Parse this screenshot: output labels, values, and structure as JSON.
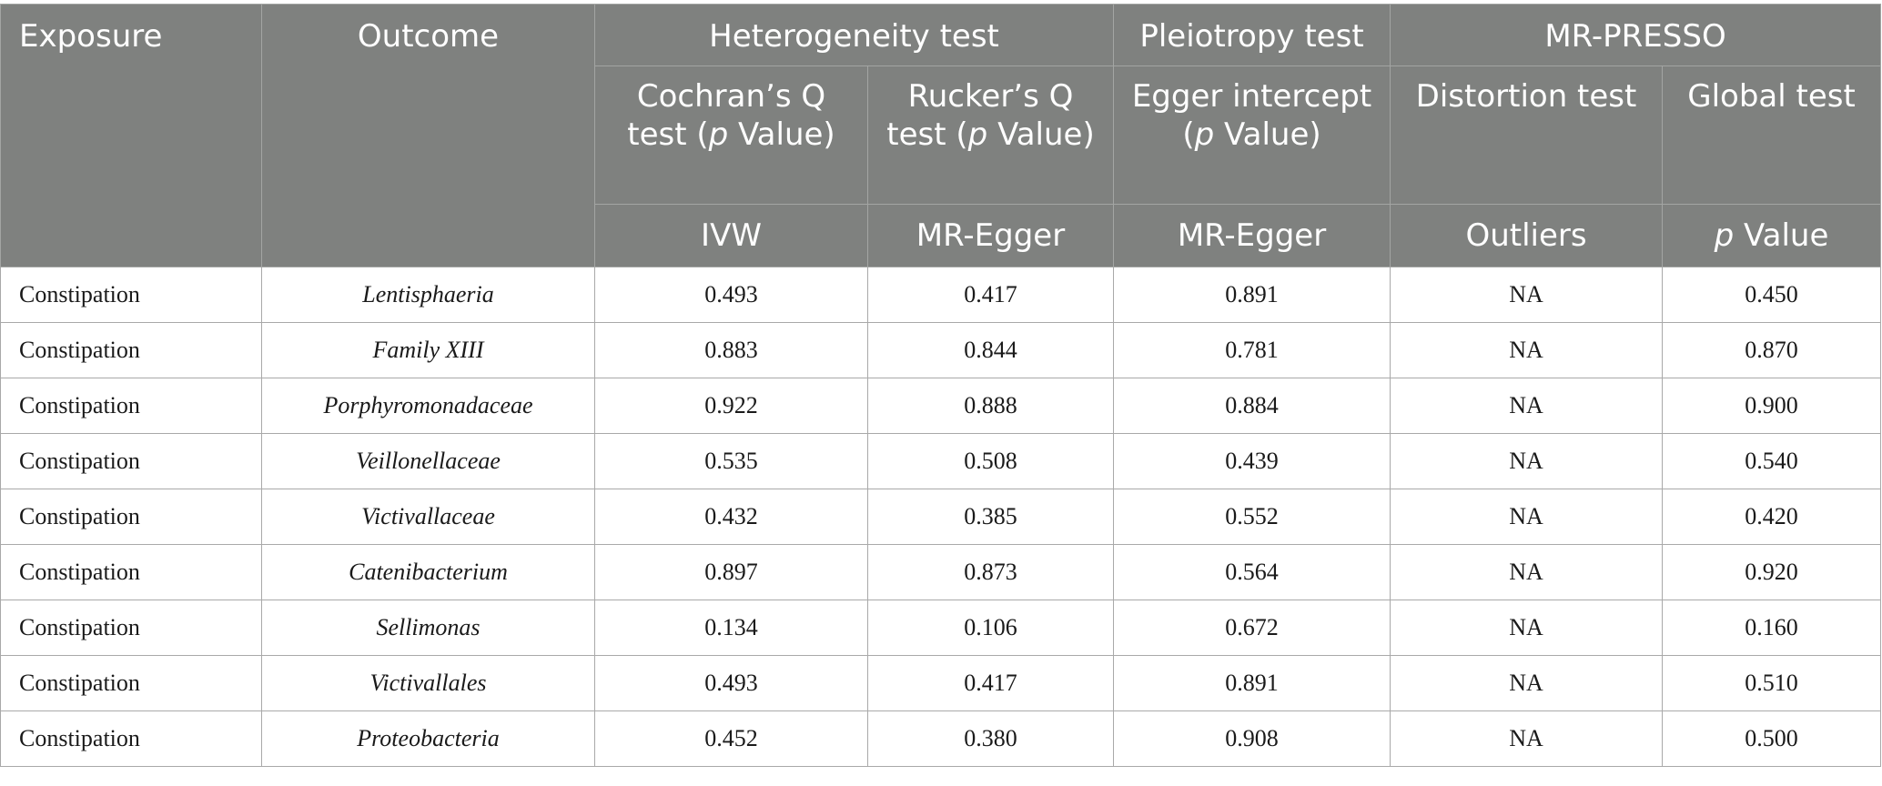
{
  "header": {
    "exposure": "Exposure",
    "outcome": "Outcome",
    "heterogeneity_test": "Heterogeneity test",
    "pleiotropy_test": "Pleiotropy test",
    "mr_presso": "MR-PRESSO",
    "cochran_pre": "Cochran’s Q test (",
    "cochran_p": "p",
    "cochran_post": " Value)",
    "rucker_pre": "Rucker’s Q test (",
    "rucker_p": "p",
    "rucker_post": " Value)",
    "egger_pre": "Egger intercept (",
    "egger_p": "p",
    "egger_post": " Value)",
    "distortion_test": "Distortion test",
    "global_test": "Global test",
    "ivw": "IVW",
    "mr_egger_1": "MR-Egger",
    "mr_egger_2": "MR-Egger",
    "outliers": "Outliers",
    "pvalue_p": "p",
    "pvalue_post": " Value"
  },
  "rows": [
    {
      "exposure": "Constipation",
      "outcome": "Lentisphaeria",
      "ivw": "0.493",
      "rucker": "0.417",
      "egger": "0.891",
      "outliers": "NA",
      "global": "0.450"
    },
    {
      "exposure": "Constipation",
      "outcome": "Family XIII",
      "ivw": "0.883",
      "rucker": "0.844",
      "egger": "0.781",
      "outliers": "NA",
      "global": "0.870"
    },
    {
      "exposure": "Constipation",
      "outcome": "Porphyromonadaceae",
      "ivw": "0.922",
      "rucker": "0.888",
      "egger": "0.884",
      "outliers": "NA",
      "global": "0.900"
    },
    {
      "exposure": "Constipation",
      "outcome": "Veillonellaceae",
      "ivw": "0.535",
      "rucker": "0.508",
      "egger": "0.439",
      "outliers": "NA",
      "global": "0.540"
    },
    {
      "exposure": "Constipation",
      "outcome": "Victivallaceae",
      "ivw": "0.432",
      "rucker": "0.385",
      "egger": "0.552",
      "outliers": "NA",
      "global": "0.420"
    },
    {
      "exposure": "Constipation",
      "outcome": "Catenibacterium",
      "ivw": "0.897",
      "rucker": "0.873",
      "egger": "0.564",
      "outliers": "NA",
      "global": "0.920"
    },
    {
      "exposure": "Constipation",
      "outcome": "Sellimonas",
      "ivw": "0.134",
      "rucker": "0.106",
      "egger": "0.672",
      "outliers": "NA",
      "global": "0.160"
    },
    {
      "exposure": "Constipation",
      "outcome": "Victivallales",
      "ivw": "0.493",
      "rucker": "0.417",
      "egger": "0.891",
      "outliers": "NA",
      "global": "0.510"
    },
    {
      "exposure": "Constipation",
      "outcome": "Proteobacteria",
      "ivw": "0.452",
      "rucker": "0.380",
      "egger": "0.908",
      "outliers": "NA",
      "global": "0.500"
    }
  ]
}
